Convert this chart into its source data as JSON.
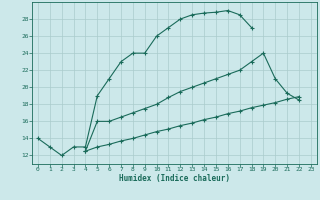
{
  "bg_color": "#cce8ea",
  "grid_color": "#aacccc",
  "line_color": "#1a6b5a",
  "xlabel": "Humidex (Indice chaleur)",
  "xlim": [
    -0.5,
    23.5
  ],
  "ylim": [
    11,
    30
  ],
  "xticks": [
    0,
    1,
    2,
    3,
    4,
    5,
    6,
    7,
    8,
    9,
    10,
    11,
    12,
    13,
    14,
    15,
    16,
    17,
    18,
    19,
    20,
    21,
    22,
    23
  ],
  "yticks": [
    12,
    14,
    16,
    18,
    20,
    22,
    24,
    26,
    28
  ],
  "line1_x": [
    0,
    1,
    2,
    3,
    4,
    5,
    6,
    7,
    8,
    9,
    10,
    11,
    12,
    13,
    14,
    15,
    16,
    17,
    18
  ],
  "line1_y": [
    14,
    13,
    12,
    13,
    13,
    19,
    21,
    23,
    24,
    24,
    26,
    27,
    28,
    28.5,
    28.7,
    28.8,
    29.0,
    28.5,
    27.0
  ],
  "line2_x": [
    4,
    5,
    6,
    7,
    8,
    9,
    10,
    11,
    12,
    13,
    14,
    15,
    16,
    17,
    18,
    19,
    20,
    21,
    22
  ],
  "line2_y": [
    12.5,
    16.0,
    16.0,
    16.5,
    17.0,
    17.5,
    18.0,
    18.8,
    19.5,
    20.0,
    20.5,
    21.0,
    21.5,
    22.0,
    23.0,
    24.0,
    21.0,
    19.3,
    18.5
  ],
  "line3_x": [
    4,
    5,
    6,
    7,
    8,
    9,
    10,
    11,
    12,
    13,
    14,
    15,
    16,
    17,
    18,
    19,
    20,
    21,
    22
  ],
  "line3_y": [
    12.5,
    13.0,
    13.3,
    13.7,
    14.0,
    14.4,
    14.8,
    15.1,
    15.5,
    15.8,
    16.2,
    16.5,
    16.9,
    17.2,
    17.6,
    17.9,
    18.2,
    18.6,
    18.9
  ]
}
